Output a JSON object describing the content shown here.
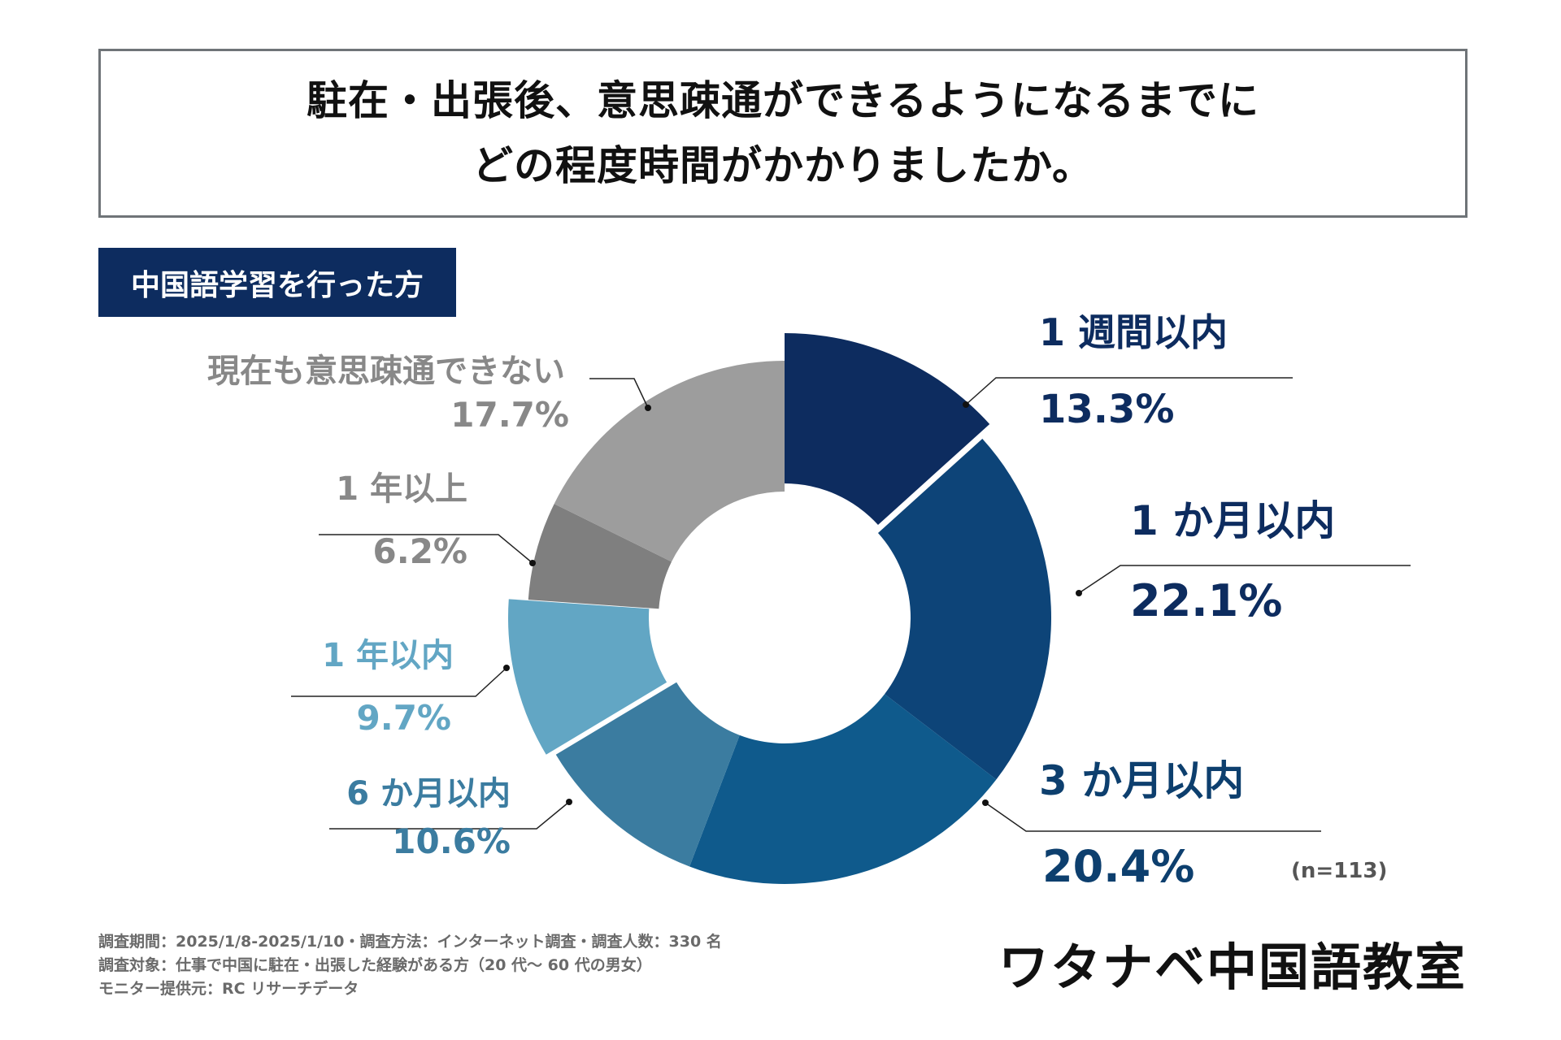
{
  "title": {
    "line1": "駐在・出張後、意思疎通ができるようになるまでに",
    "line2": "どの程度時間がかかりましたか。"
  },
  "badge": "中国語学習を行った方",
  "chart_data": {
    "type": "pie",
    "donut": true,
    "categories": [
      "1 週間以内",
      "1 か月以内",
      "3 か月以内",
      "6 か月以内",
      "1 年以内",
      "1 年以上",
      "現在も意思疎通できない"
    ],
    "values": [
      13.3,
      22.1,
      20.4,
      10.6,
      9.7,
      6.2,
      17.7
    ],
    "value_labels": [
      "13.3%",
      "22.1%",
      "20.4%",
      "10.6%",
      "9.7%",
      "6.2%",
      "17.7%"
    ],
    "colors": [
      "#0d2c5f",
      "#0d4478",
      "#0f5a8c",
      "#3b7ca0",
      "#62a6c4",
      "#7f7f7f",
      "#9d9d9d"
    ],
    "label_colors": [
      "#0d2c5f",
      "#0d2c5f",
      "#0d3f6e",
      "#3b7ca0",
      "#62a6c4",
      "#888888",
      "#888888"
    ],
    "sample_note": "(n=113)"
  },
  "footnote": {
    "line1": "調査期間：2025/1/8-2025/1/10・調査方法：インターネット調査・調査人数：330 名",
    "line2": "調査対象：仕事で中国に駐在・出張した経験がある方（20 代～ 60 代の男女）",
    "line3": "モニター提供元：RC リサーチデータ"
  },
  "brand": "ワタナベ中国語教室"
}
